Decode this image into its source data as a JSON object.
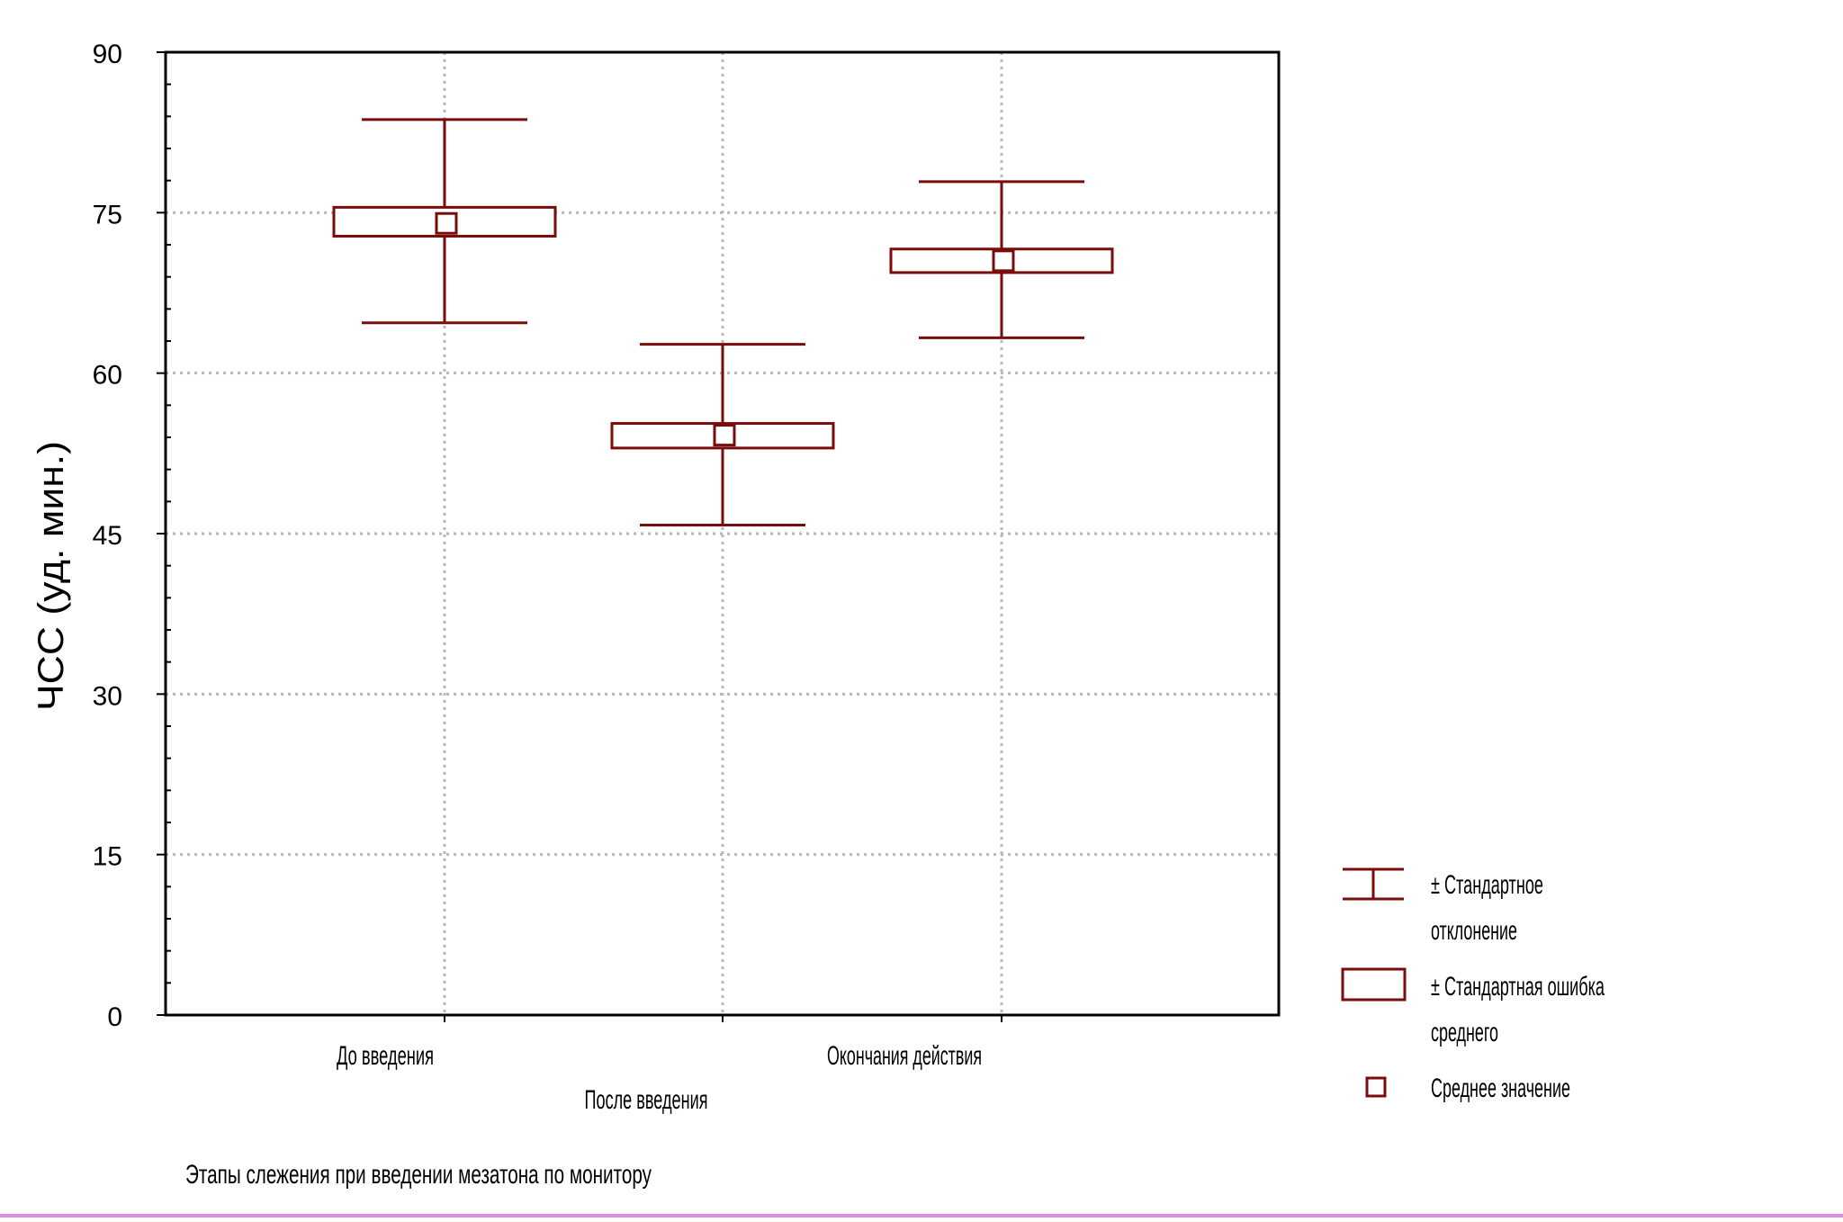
{
  "chart_data": {
    "type": "box",
    "ylabel": "ЧСС (уд. мин.)",
    "xlabel": "Этапы слежения при введении мезатона по монитору",
    "ylim": [
      0,
      90
    ],
    "yticks": [
      0,
      15,
      30,
      45,
      60,
      75,
      90
    ],
    "grid": true,
    "categories": [
      "До введения",
      "После введения",
      "Окончания действия"
    ],
    "series": [
      {
        "name": "Среднее значение",
        "values": [
          74.0,
          54.2,
          70.5
        ]
      },
      {
        "name": "± Стандартная ошибка среднего",
        "lower": [
          72.8,
          53.0,
          69.4
        ],
        "upper": [
          75.5,
          55.3,
          71.6
        ]
      },
      {
        "name": "± Стандартное отклонение",
        "lower": [
          64.7,
          45.8,
          63.3
        ],
        "upper": [
          83.7,
          62.7,
          77.9
        ]
      }
    ],
    "legend": {
      "position": "bottom-right",
      "items": [
        {
          "symbol": "whisker",
          "lines": [
            "± Стандартное",
            "отклонение"
          ]
        },
        {
          "symbol": "box",
          "lines": [
            "± Стандартная ошибка",
            "среднего"
          ]
        },
        {
          "symbol": "mean",
          "lines": [
            "Среднее значение"
          ]
        }
      ]
    },
    "colors": {
      "series": "#7a0c0c",
      "axis": "#000000",
      "grid": "#b8b8b8",
      "bottom_bar": "#e08ae0"
    }
  }
}
